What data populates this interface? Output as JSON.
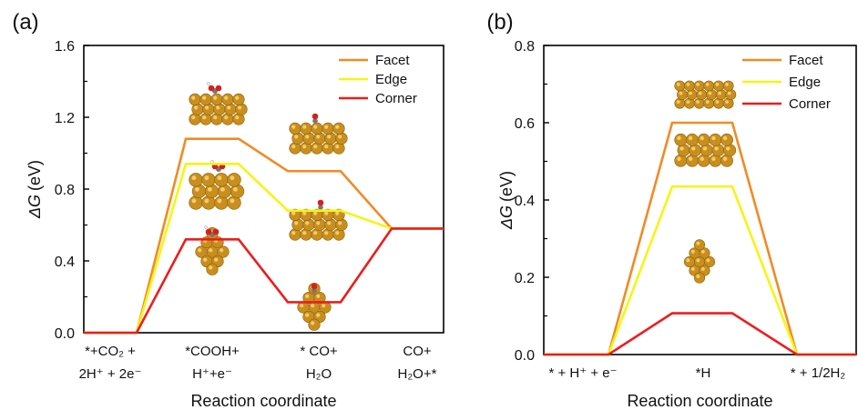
{
  "chart_data": [
    {
      "panel_label": "(a)",
      "type": "line",
      "xlabel": "Reaction coordinate",
      "ylabel_symbol": "ΔG",
      "ylabel_unit": "(eV)",
      "ylim": [
        0.0,
        1.6
      ],
      "yticks": [
        "0.0",
        "0.4",
        "0.8",
        "1.2",
        "1.6"
      ],
      "grid": false,
      "legend_position": "top-right",
      "categories": [
        [
          "*+CO₂ +",
          "2H⁺ + 2e⁻"
        ],
        [
          "*COOH+",
          "H⁺+e⁻"
        ],
        [
          "* CO+",
          "H₂O"
        ],
        [
          "CO+",
          "H₂O+*"
        ]
      ],
      "series": [
        {
          "name": "Facet",
          "color": "#F28A25",
          "values": [
            0.0,
            1.08,
            0.9,
            0.58
          ]
        },
        {
          "name": "Edge",
          "color": "#F5F514",
          "values": [
            0.0,
            0.94,
            0.68,
            0.58
          ]
        },
        {
          "name": "Corner",
          "color": "#EE1C1C",
          "values": [
            0.0,
            0.52,
            0.17,
            0.58
          ]
        }
      ],
      "structure_images": [
        {
          "name": "facet-cooh-structure",
          "kind": "slab"
        },
        {
          "name": "edge-cooh-structure",
          "kind": "slab"
        },
        {
          "name": "corner-cooh-structure",
          "kind": "cluster"
        },
        {
          "name": "facet-co-structure",
          "kind": "slab"
        },
        {
          "name": "edge-co-structure",
          "kind": "slab"
        },
        {
          "name": "corner-co-structure",
          "kind": "cluster"
        }
      ]
    },
    {
      "panel_label": "(b)",
      "type": "line",
      "xlabel": "Reaction coordinate",
      "ylabel_symbol": "ΔG",
      "ylabel_unit": "(eV)",
      "ylim": [
        0.0,
        0.8
      ],
      "yticks": [
        "0.0",
        "0.2",
        "0.4",
        "0.6",
        "0.8"
      ],
      "grid": false,
      "legend_position": "top-right",
      "categories": [
        [
          "* + H⁺ + e⁻"
        ],
        [
          "*H"
        ],
        [
          "* + 1/2H₂"
        ]
      ],
      "series": [
        {
          "name": "Facet",
          "color": "#F28A25",
          "values": [
            0.0,
            0.6,
            0.0
          ]
        },
        {
          "name": "Edge",
          "color": "#F5F514",
          "values": [
            0.0,
            0.435,
            0.0
          ]
        },
        {
          "name": "Corner",
          "color": "#EE1C1C",
          "values": [
            0.0,
            0.107,
            0.0
          ]
        }
      ],
      "structure_images": [
        {
          "name": "facet-h-structure",
          "kind": "slab"
        },
        {
          "name": "edge-h-structure",
          "kind": "slab"
        },
        {
          "name": "corner-h-structure",
          "kind": "cluster"
        }
      ]
    }
  ]
}
